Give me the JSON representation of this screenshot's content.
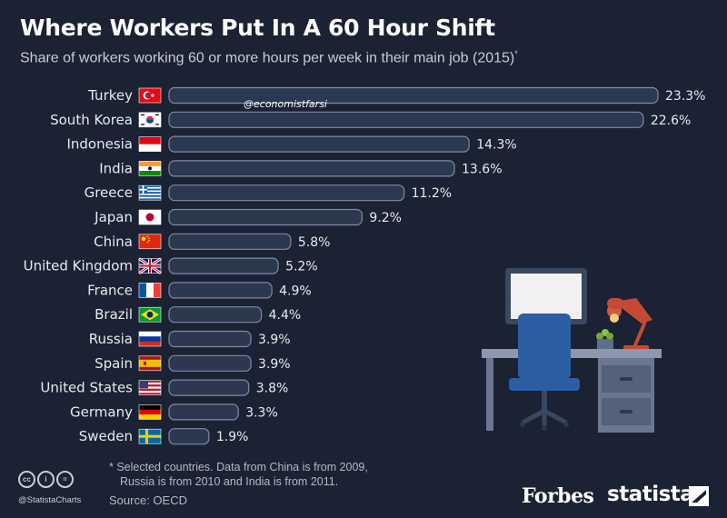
{
  "title": "Where Workers Put In A 60 Hour Shift",
  "subtitle": "Share of workers working 60 or more hours per week in their main job (2015)",
  "subtitle_mark": "*",
  "watermark": "@economistfarsi",
  "footnote_line1": "* Selected countries. Data from China is from 2009,",
  "footnote_line2": "Russia is from 2010 and India is from 2011.",
  "source": "Source: OECD",
  "handle": "@StatistaCharts",
  "brand_forbes": "Forbes",
  "brand_statista": "statista",
  "colors": {
    "background": "#1b2233",
    "bar_fill": "#2c3850",
    "bar_stroke": "#7f8aa3"
  },
  "chart_data": {
    "type": "bar",
    "orientation": "horizontal",
    "categories": [
      "Turkey",
      "South Korea",
      "Indonesia",
      "India",
      "Greece",
      "Japan",
      "China",
      "United Kingdom",
      "France",
      "Brazil",
      "Russia",
      "Spain",
      "United States",
      "Germany",
      "Sweden"
    ],
    "values": [
      23.3,
      22.6,
      14.3,
      13.6,
      11.2,
      9.2,
      5.8,
      5.2,
      4.9,
      4.4,
      3.9,
      3.9,
      3.8,
      3.3,
      1.9
    ],
    "value_labels": [
      "23.3%",
      "22.6%",
      "14.3%",
      "13.6%",
      "11.2%",
      "9.2%",
      "5.8%",
      "5.2%",
      "4.9%",
      "4.4%",
      "3.9%",
      "3.9%",
      "3.8%",
      "3.3%",
      "1.9%"
    ],
    "flags": [
      "turkey-flag",
      "south-korea-flag",
      "indonesia-flag",
      "india-flag",
      "greece-flag",
      "japan-flag",
      "china-flag",
      "united-kingdom-flag",
      "france-flag",
      "brazil-flag",
      "russia-flag",
      "spain-flag",
      "united-states-flag",
      "germany-flag",
      "sweden-flag"
    ],
    "xlim": [
      0,
      23.3
    ],
    "grid": false,
    "legend": "none"
  }
}
